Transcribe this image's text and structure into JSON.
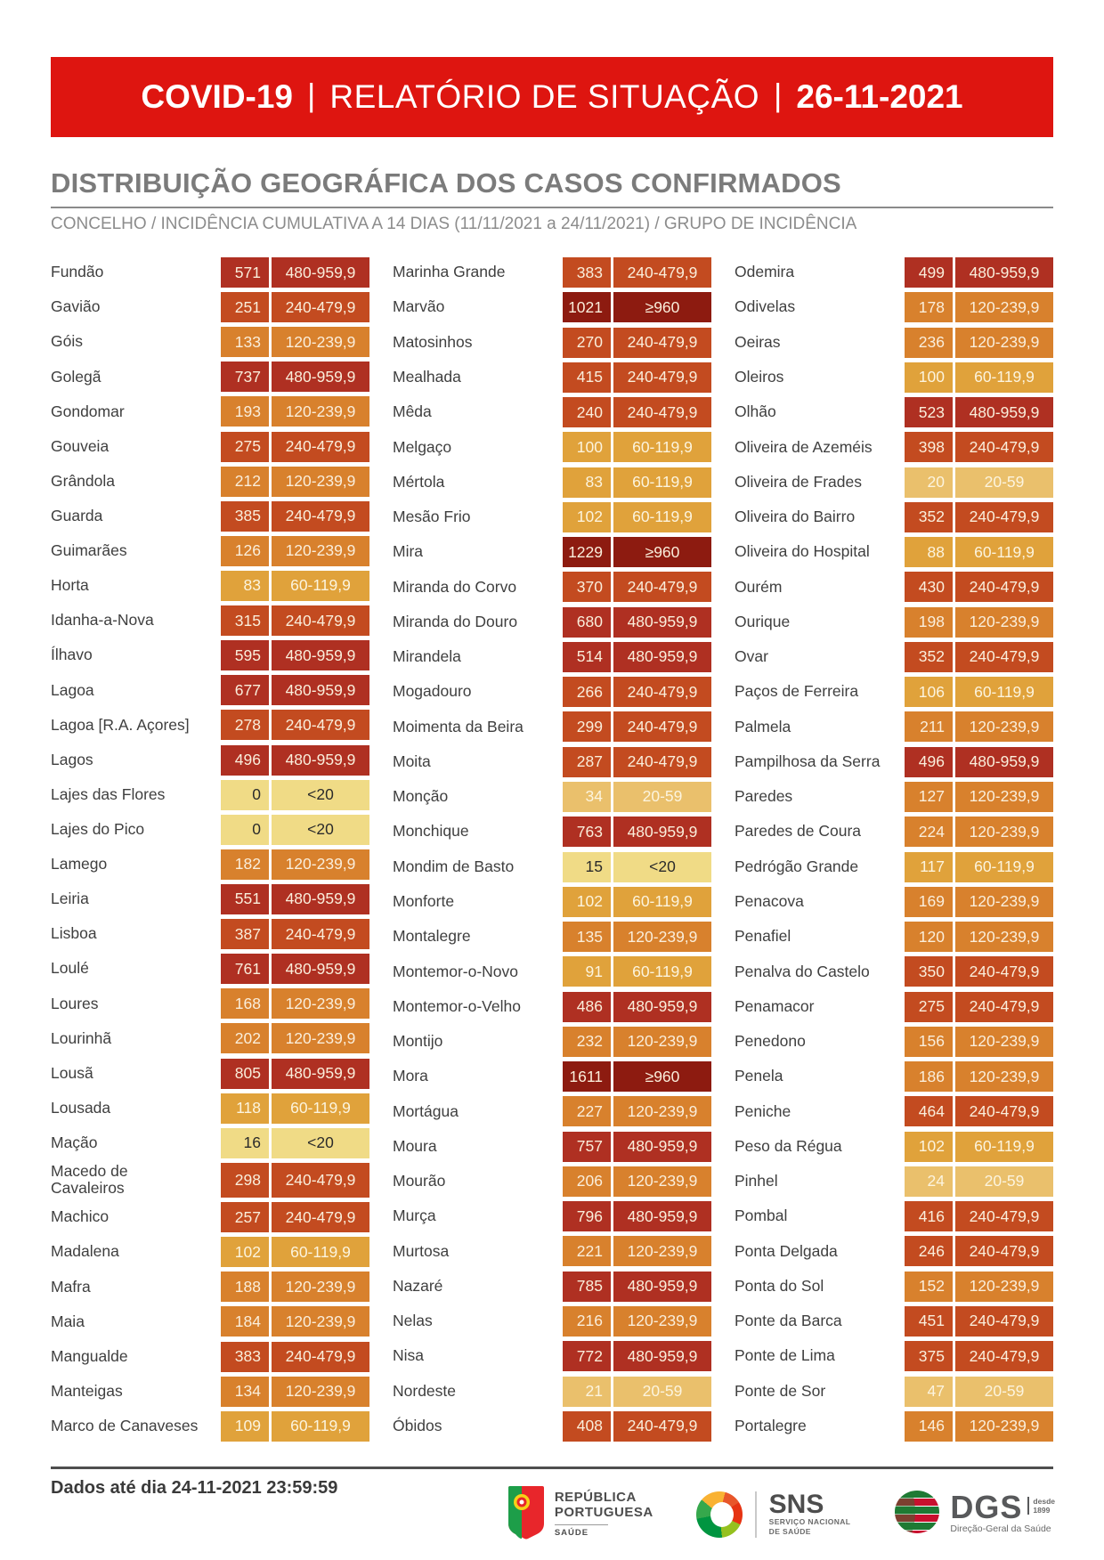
{
  "banner": {
    "product": "COVID-19",
    "separator": "|",
    "title": "RELATÓRIO DE SITUAÇÃO",
    "date": "26-11-2021"
  },
  "section": {
    "title": "DISTRIBUIÇÃO GEOGRÁFICA DOS CASOS CONFIRMADOS",
    "subtitle": "CONCELHO / INCIDÊNCIA CUMULATIVA A 14 DIAS (11/11/2021 a 24/11/2021) / GRUPO DE INCIDÊNCIA"
  },
  "incidence_colors": {
    "<20": {
      "bg": "#F0DB86",
      "fg": "#2B2B2B"
    },
    "20-59": {
      "bg": "#EAC06C",
      "fg": "#FCF4DE"
    },
    "60-119,9": {
      "bg": "#E0A23B",
      "fg": "#FCF4DE"
    },
    "120-239,9": {
      "bg": "#D8812D",
      "fg": "#FAEEDB"
    },
    "240-479,9": {
      "bg": "#C34B20",
      "fg": "#FAEEDB"
    },
    "480-959,9": {
      "bg": "#AF3022",
      "fg": "#FAEEDB"
    },
    "≥960": {
      "bg": "#8D1B10",
      "fg": "#FAEEDB"
    }
  },
  "table": {
    "columns": [
      [
        {
          "name": "Fundão",
          "value": "571",
          "group": "480-959,9"
        },
        {
          "name": "Gavião",
          "value": "251",
          "group": "240-479,9"
        },
        {
          "name": "Góis",
          "value": "133",
          "group": "120-239,9"
        },
        {
          "name": "Golegã",
          "value": "737",
          "group": "480-959,9"
        },
        {
          "name": "Gondomar",
          "value": "193",
          "group": "120-239,9"
        },
        {
          "name": "Gouveia",
          "value": "275",
          "group": "240-479,9"
        },
        {
          "name": "Grândola",
          "value": "212",
          "group": "120-239,9"
        },
        {
          "name": "Guarda",
          "value": "385",
          "group": "240-479,9"
        },
        {
          "name": "Guimarães",
          "value": "126",
          "group": "120-239,9"
        },
        {
          "name": "Horta",
          "value": "83",
          "group": "60-119,9"
        },
        {
          "name": "Idanha-a-Nova",
          "value": "315",
          "group": "240-479,9"
        },
        {
          "name": "Ílhavo",
          "value": "595",
          "group": "480-959,9"
        },
        {
          "name": "Lagoa",
          "value": "677",
          "group": "480-959,9"
        },
        {
          "name": "Lagoa [R.A. Açores]",
          "value": "278",
          "group": "240-479,9"
        },
        {
          "name": "Lagos",
          "value": "496",
          "group": "480-959,9"
        },
        {
          "name": "Lajes das Flores",
          "value": "0",
          "group": "<20"
        },
        {
          "name": "Lajes do Pico",
          "value": "0",
          "group": "<20"
        },
        {
          "name": "Lamego",
          "value": "182",
          "group": "120-239,9"
        },
        {
          "name": "Leiria",
          "value": "551",
          "group": "480-959,9"
        },
        {
          "name": "Lisboa",
          "value": "387",
          "group": "240-479,9"
        },
        {
          "name": "Loulé",
          "value": "761",
          "group": "480-959,9"
        },
        {
          "name": "Loures",
          "value": "168",
          "group": "120-239,9"
        },
        {
          "name": "Lourinhã",
          "value": "202",
          "group": "120-239,9"
        },
        {
          "name": "Lousã",
          "value": "805",
          "group": "480-959,9"
        },
        {
          "name": "Lousada",
          "value": "118",
          "group": "60-119,9"
        },
        {
          "name": "Mação",
          "value": "16",
          "group": "<20"
        },
        {
          "name": "Macedo de Cavaleiros",
          "value": "298",
          "group": "240-479,9",
          "wrap": true
        },
        {
          "name": "Machico",
          "value": "257",
          "group": "240-479,9"
        },
        {
          "name": "Madalena",
          "value": "102",
          "group": "60-119,9"
        },
        {
          "name": "Mafra",
          "value": "188",
          "group": "120-239,9"
        },
        {
          "name": "Maia",
          "value": "184",
          "group": "120-239,9"
        },
        {
          "name": "Mangualde",
          "value": "383",
          "group": "240-479,9"
        },
        {
          "name": "Manteigas",
          "value": "134",
          "group": "120-239,9"
        },
        {
          "name": "Marco de Canaveses",
          "value": "109",
          "group": "60-119,9"
        }
      ],
      [
        {
          "name": "Marinha Grande",
          "value": "383",
          "group": "240-479,9"
        },
        {
          "name": "Marvão",
          "value": "1021",
          "group": "≥960"
        },
        {
          "name": "Matosinhos",
          "value": "270",
          "group": "240-479,9"
        },
        {
          "name": "Mealhada",
          "value": "415",
          "group": "240-479,9"
        },
        {
          "name": "Mêda",
          "value": "240",
          "group": "240-479,9"
        },
        {
          "name": "Melgaço",
          "value": "100",
          "group": "60-119,9"
        },
        {
          "name": "Mértola",
          "value": "83",
          "group": "60-119,9"
        },
        {
          "name": "Mesão Frio",
          "value": "102",
          "group": "60-119,9"
        },
        {
          "name": "Mira",
          "value": "1229",
          "group": "≥960"
        },
        {
          "name": "Miranda do Corvo",
          "value": "370",
          "group": "240-479,9"
        },
        {
          "name": "Miranda do Douro",
          "value": "680",
          "group": "480-959,9"
        },
        {
          "name": "Mirandela",
          "value": "514",
          "group": "480-959,9"
        },
        {
          "name": "Mogadouro",
          "value": "266",
          "group": "240-479,9"
        },
        {
          "name": "Moimenta da Beira",
          "value": "299",
          "group": "240-479,9"
        },
        {
          "name": "Moita",
          "value": "287",
          "group": "240-479,9"
        },
        {
          "name": "Monção",
          "value": "34",
          "group": "20-59"
        },
        {
          "name": "Monchique",
          "value": "763",
          "group": "480-959,9"
        },
        {
          "name": "Mondim de Basto",
          "value": "15",
          "group": "<20"
        },
        {
          "name": "Monforte",
          "value": "102",
          "group": "60-119,9"
        },
        {
          "name": "Montalegre",
          "value": "135",
          "group": "120-239,9"
        },
        {
          "name": "Montemor-o-Novo",
          "value": "91",
          "group": "60-119,9"
        },
        {
          "name": "Montemor-o-Velho",
          "value": "486",
          "group": "480-959,9"
        },
        {
          "name": "Montijo",
          "value": "232",
          "group": "120-239,9"
        },
        {
          "name": "Mora",
          "value": "1611",
          "group": "≥960"
        },
        {
          "name": "Mortágua",
          "value": "227",
          "group": "120-239,9"
        },
        {
          "name": "Moura",
          "value": "757",
          "group": "480-959,9"
        },
        {
          "name": "Mourão",
          "value": "206",
          "group": "120-239,9"
        },
        {
          "name": "Murça",
          "value": "796",
          "group": "480-959,9"
        },
        {
          "name": "Murtosa",
          "value": "221",
          "group": "120-239,9"
        },
        {
          "name": "Nazaré",
          "value": "785",
          "group": "480-959,9"
        },
        {
          "name": "Nelas",
          "value": "216",
          "group": "120-239,9"
        },
        {
          "name": "Nisa",
          "value": "772",
          "group": "480-959,9"
        },
        {
          "name": "Nordeste",
          "value": "21",
          "group": "20-59"
        },
        {
          "name": "Óbidos",
          "value": "408",
          "group": "240-479,9"
        }
      ],
      [
        {
          "name": "Odemira",
          "value": "499",
          "group": "480-959,9"
        },
        {
          "name": "Odivelas",
          "value": "178",
          "group": "120-239,9"
        },
        {
          "name": "Oeiras",
          "value": "236",
          "group": "120-239,9"
        },
        {
          "name": "Oleiros",
          "value": "100",
          "group": "60-119,9"
        },
        {
          "name": "Olhão",
          "value": "523",
          "group": "480-959,9"
        },
        {
          "name": "Oliveira de Azeméis",
          "value": "398",
          "group": "240-479,9"
        },
        {
          "name": "Oliveira de Frades",
          "value": "20",
          "group": "20-59"
        },
        {
          "name": "Oliveira do Bairro",
          "value": "352",
          "group": "240-479,9"
        },
        {
          "name": "Oliveira do Hospital",
          "value": "88",
          "group": "60-119,9"
        },
        {
          "name": "Ourém",
          "value": "430",
          "group": "240-479,9"
        },
        {
          "name": "Ourique",
          "value": "198",
          "group": "120-239,9"
        },
        {
          "name": "Ovar",
          "value": "352",
          "group": "240-479,9"
        },
        {
          "name": "Paços de Ferreira",
          "value": "106",
          "group": "60-119,9"
        },
        {
          "name": "Palmela",
          "value": "211",
          "group": "120-239,9"
        },
        {
          "name": "Pampilhosa da Serra",
          "value": "496",
          "group": "480-959,9"
        },
        {
          "name": "Paredes",
          "value": "127",
          "group": "120-239,9"
        },
        {
          "name": "Paredes de Coura",
          "value": "224",
          "group": "120-239,9"
        },
        {
          "name": "Pedrógão Grande",
          "value": "117",
          "group": "60-119,9"
        },
        {
          "name": "Penacova",
          "value": "169",
          "group": "120-239,9"
        },
        {
          "name": "Penafiel",
          "value": "120",
          "group": "120-239,9"
        },
        {
          "name": "Penalva do Castelo",
          "value": "350",
          "group": "240-479,9"
        },
        {
          "name": "Penamacor",
          "value": "275",
          "group": "240-479,9"
        },
        {
          "name": "Penedono",
          "value": "156",
          "group": "120-239,9"
        },
        {
          "name": "Penela",
          "value": "186",
          "group": "120-239,9"
        },
        {
          "name": "Peniche",
          "value": "464",
          "group": "240-479,9"
        },
        {
          "name": "Peso da Régua",
          "value": "102",
          "group": "60-119,9"
        },
        {
          "name": "Pinhel",
          "value": "24",
          "group": "20-59"
        },
        {
          "name": "Pombal",
          "value": "416",
          "group": "240-479,9"
        },
        {
          "name": "Ponta Delgada",
          "value": "246",
          "group": "240-479,9"
        },
        {
          "name": "Ponta do Sol",
          "value": "152",
          "group": "120-239,9"
        },
        {
          "name": "Ponte da Barca",
          "value": "451",
          "group": "240-479,9"
        },
        {
          "name": "Ponte de Lima",
          "value": "375",
          "group": "240-479,9"
        },
        {
          "name": "Ponte de Sor",
          "value": "47",
          "group": "20-59"
        },
        {
          "name": "Portalegre",
          "value": "146",
          "group": "120-239,9"
        }
      ]
    ]
  },
  "footer": {
    "note": "Dados até dia 24-11-2021 23:59:59"
  },
  "logos": {
    "republica": {
      "line1": "REPÚBLICA",
      "line2": "PORTUGUESA",
      "sub": "SAÚDE"
    },
    "sns": {
      "name": "SNS",
      "sub1": "SERVIÇO NACIONAL",
      "sub2": "DE SAÚDE"
    },
    "dgs": {
      "name": "DGS",
      "since1": "desde",
      "since2": "1899",
      "sub": "Direção-Geral da Saúde"
    }
  }
}
